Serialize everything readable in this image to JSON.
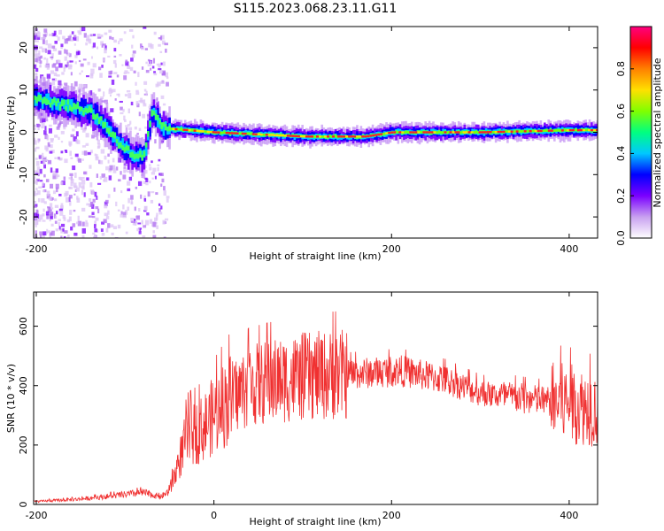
{
  "title": "S115.2023.068.23.11.G11",
  "chart_data": [
    {
      "type": "heatmap",
      "xlabel": "Height of straight line (km)",
      "ylabel": "Frequency (Hz)",
      "xlim": [
        -203,
        432
      ],
      "ylim": [
        -25,
        25
      ],
      "xticks": [
        -200,
        0,
        200,
        400
      ],
      "yticks": [
        -20,
        -10,
        0,
        10,
        20
      ],
      "colorbar": {
        "label": "Normalized spectral amplitude",
        "range": [
          0,
          1
        ],
        "ticks": [
          "0.0",
          "0.2",
          "0.4",
          "0.6",
          "0.8"
        ],
        "colors": [
          "#ffffff",
          "#c8a0f0",
          "#7a00ff",
          "#0000ff",
          "#00c8ff",
          "#00ff80",
          "#80ff00",
          "#ffe000",
          "#ff8000",
          "#ff0000",
          "#ff0080"
        ]
      },
      "ridge": [
        {
          "x": -200,
          "y": 8
        },
        {
          "x": -160,
          "y": 6
        },
        {
          "x": -140,
          "y": 5
        },
        {
          "x": -125,
          "y": 2
        },
        {
          "x": -110,
          "y": -2
        },
        {
          "x": -95,
          "y": -5
        },
        {
          "x": -80,
          "y": -6
        },
        {
          "x": -70,
          "y": 5
        },
        {
          "x": -60,
          "y": 1
        },
        {
          "x": 0,
          "y": 0
        },
        {
          "x": 100,
          "y": -1
        },
        {
          "x": 170,
          "y": -1
        },
        {
          "x": 200,
          "y": 0
        },
        {
          "x": 300,
          "y": 0
        },
        {
          "x": 400,
          "y": 0.5
        },
        {
          "x": 432,
          "y": 0.5
        }
      ]
    },
    {
      "type": "line",
      "xlabel": "Height of straight line (km)",
      "ylabel": "SNR (10 * v/v)",
      "xlim": [
        -203,
        432
      ],
      "ylim": [
        0,
        715
      ],
      "xticks": [
        -200,
        0,
        200,
        400
      ],
      "yticks": [
        0,
        200,
        400,
        600
      ],
      "color": "#f03030",
      "envelope": [
        {
          "x": -200,
          "y": 10
        },
        {
          "x": -150,
          "y": 18
        },
        {
          "x": -110,
          "y": 30
        },
        {
          "x": -80,
          "y": 40
        },
        {
          "x": -60,
          "y": 25
        },
        {
          "x": -50,
          "y": 45
        },
        {
          "x": -40,
          "y": 140
        },
        {
          "x": -30,
          "y": 230
        },
        {
          "x": -15,
          "y": 250
        },
        {
          "x": 0,
          "y": 300
        },
        {
          "x": 20,
          "y": 360
        },
        {
          "x": 40,
          "y": 400
        },
        {
          "x": 100,
          "y": 430
        },
        {
          "x": 160,
          "y": 440
        },
        {
          "x": 210,
          "y": 450
        },
        {
          "x": 260,
          "y": 420
        },
        {
          "x": 300,
          "y": 375
        },
        {
          "x": 350,
          "y": 355
        },
        {
          "x": 400,
          "y": 340
        },
        {
          "x": 432,
          "y": 320
        }
      ]
    }
  ]
}
